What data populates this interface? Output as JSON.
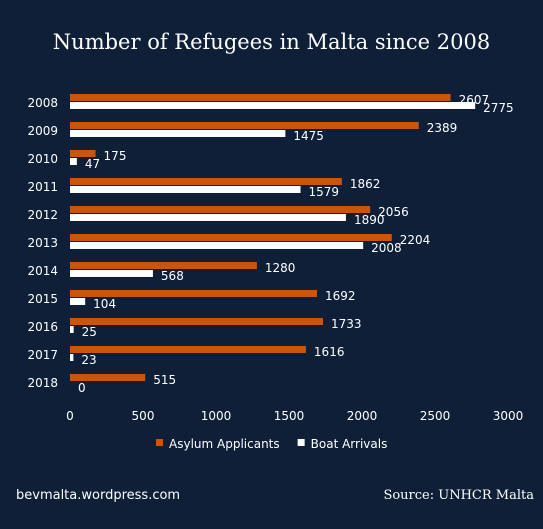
{
  "footer": {
    "blog": "bevmalta.wordpress.com",
    "source": "Source: UNHCR Malta"
  },
  "colors": {
    "background": "#0f1f38",
    "asylum": "#c8560e",
    "boat": "#ffffff",
    "text": "#ffffff"
  },
  "chart_data": {
    "type": "bar",
    "orientation": "horizontal",
    "title": "Number of Refugees in Malta since 2008",
    "categories": [
      "2008",
      "2009",
      "2010",
      "2011",
      "2012",
      "2013",
      "2014",
      "2015",
      "2016",
      "2017",
      "2018"
    ],
    "series": [
      {
        "name": "Asylum Applicants",
        "color": "#c8560e",
        "values": [
          2607,
          2389,
          175,
          1862,
          2056,
          2204,
          1280,
          1692,
          1733,
          1616,
          515
        ]
      },
      {
        "name": "Boat Arrivals",
        "color": "#ffffff",
        "values": [
          2775,
          1475,
          47,
          1579,
          1890,
          2008,
          568,
          104,
          25,
          23,
          0
        ]
      }
    ],
    "xlim": [
      0,
      3000
    ],
    "xticks": [
      "0",
      "500",
      "1000",
      "1500",
      "2000",
      "2500",
      "3000"
    ],
    "grid": false,
    "legend": "bottom",
    "data_labels": true
  }
}
